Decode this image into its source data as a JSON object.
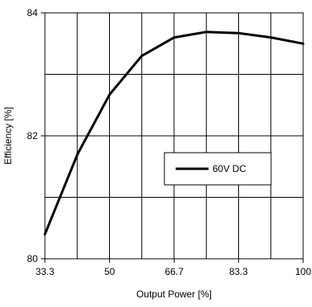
{
  "chart_data": {
    "type": "line",
    "title": "",
    "xlabel": "Output Power [%]",
    "ylabel": "Efficiency [%]",
    "xlim": [
      33.3,
      100
    ],
    "ylim": [
      80,
      84
    ],
    "x_ticks": [
      33.3,
      50,
      66.7,
      83.3,
      100
    ],
    "x_tick_labels": [
      "33.3",
      "50",
      "66.7",
      "83.3",
      "100"
    ],
    "y_ticks": [
      80,
      82,
      84
    ],
    "y_tick_labels": [
      "80",
      "82",
      "84"
    ],
    "grid": true,
    "legend_position": "center-right",
    "series": [
      {
        "name": "60V DC",
        "color": "#000000",
        "x": [
          33.3,
          41.7,
          50,
          58.3,
          66.7,
          75,
          83.3,
          91.7,
          100
        ],
        "y": [
          80.4,
          81.7,
          82.67,
          83.3,
          83.6,
          83.69,
          83.67,
          83.6,
          83.5
        ]
      }
    ]
  }
}
